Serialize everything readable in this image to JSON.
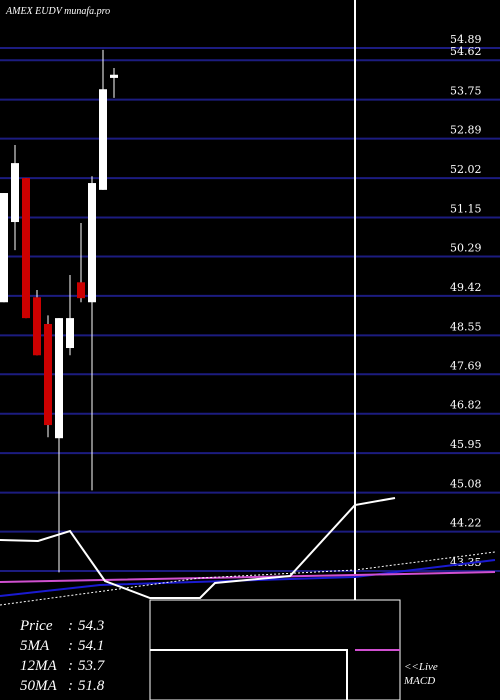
{
  "chart_data": {
    "type": "candlestick",
    "title": "AMEX  EUDV munafa.pro",
    "categories": [
      null,
      null,
      null,
      null,
      null,
      null,
      null,
      null,
      null,
      null,
      null
    ],
    "open": [
      49.28,
      51.05,
      52.02,
      49.39,
      48.8,
      46.28,
      48.27,
      49.72,
      49.28,
      51.76,
      54.23
    ],
    "high": [
      51.69,
      52.75,
      52.02,
      49.55,
      48.99,
      48.93,
      49.88,
      51.03,
      52.06,
      54.85,
      54.45
    ],
    "low": [
      49.28,
      50.43,
      48.93,
      48.11,
      46.3,
      43.32,
      48.11,
      49.28,
      45.13,
      51.76,
      53.79
    ],
    "close": [
      51.69,
      52.35,
      48.93,
      48.11,
      46.57,
      48.93,
      48.93,
      49.37,
      51.91,
      53.98,
      54.3
    ],
    "up_color": "#ffffff",
    "down_color": "#cc0000",
    "ylim": [
      43.35,
      54.89
    ],
    "yticks": [
      54.89,
      54.62,
      53.75,
      52.89,
      52.02,
      51.15,
      50.29,
      49.42,
      48.55,
      47.69,
      46.82,
      45.95,
      45.08,
      44.22,
      43.35
    ],
    "grid": true,
    "grid_color": "#1c1c80",
    "info_separator": ":",
    "info": [
      {
        "label": "Price",
        "value": 54.3
      },
      {
        "label": "5MA",
        "value": 54.1
      },
      {
        "label": "12MA",
        "value": 53.7
      },
      {
        "label": "50MA",
        "value": 51.8
      }
    ],
    "macd_label": [
      "<<Live",
      "MACD"
    ]
  }
}
